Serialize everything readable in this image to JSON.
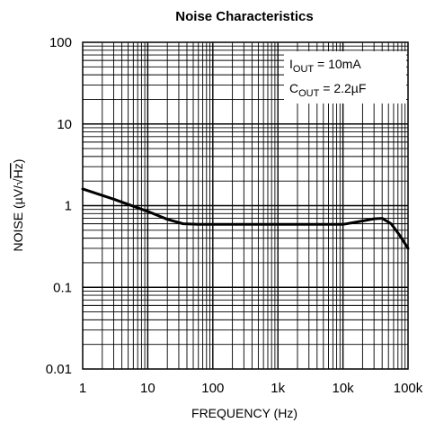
{
  "chart_data": {
    "type": "line",
    "title": "Noise Characteristics",
    "xlabel": "FREQUENCY (Hz)",
    "ylabel": {
      "prefix": "NOISE (",
      "mu": "µ",
      "unit_v": "V/",
      "sqrt_sign": "√",
      "radicand": "Hz",
      "suffix": ")"
    },
    "xscale": "log",
    "yscale": "log",
    "xlim": [
      1,
      100000
    ],
    "ylim": [
      0.01,
      100
    ],
    "x_ticks": [
      1,
      10,
      100,
      1000,
      10000,
      100000
    ],
    "x_tick_labels": [
      "1",
      "10",
      "100",
      "1k",
      "10k",
      "100k"
    ],
    "y_ticks": [
      0.01,
      0.1,
      1,
      10,
      100
    ],
    "y_tick_labels": [
      "0.01",
      "0.1",
      "1",
      "10",
      "100"
    ],
    "grid": true,
    "annotations": [
      {
        "main": "I",
        "sub": "OUT",
        "rest": " = 10mA"
      },
      {
        "main": "C",
        "sub": "OUT",
        "rest": " = 2.2µF"
      }
    ],
    "series": [
      {
        "color": "#000000",
        "x": [
          1,
          3,
          10,
          20,
          35,
          60,
          100,
          300,
          1000,
          3000,
          10000,
          20000,
          30000,
          40000,
          55000,
          75000,
          100000
        ],
        "y": [
          1.6,
          1.2,
          0.85,
          0.68,
          0.6,
          0.59,
          0.59,
          0.59,
          0.59,
          0.59,
          0.59,
          0.65,
          0.69,
          0.7,
          0.6,
          0.43,
          0.3
        ]
      }
    ]
  }
}
